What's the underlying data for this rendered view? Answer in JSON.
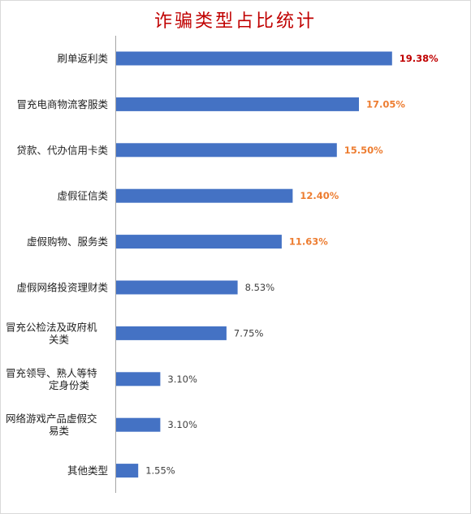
{
  "chart_data": {
    "type": "bar",
    "orientation": "horizontal",
    "title": "诈骗类型占比统计",
    "xlabel": "",
    "ylabel": "",
    "xlim": [
      0,
      21.5
    ],
    "grid": false,
    "legend": "none",
    "categories": [
      "刷单返利类",
      "冒充电商物流客服类",
      "贷款、代办信用卡类",
      "虚假征信类",
      "虚假购物、服务类",
      "虚假网络投资理财类",
      "冒充公检法及政府机关类",
      "冒充领导、熟人等特定身份类",
      "网络游戏产品虚假交易类",
      "其他类型"
    ],
    "category_lines": [
      [
        "刷单返利类"
      ],
      [
        "冒充电商物流客服类"
      ],
      [
        "贷款、代办信用卡类"
      ],
      [
        "虚假征信类"
      ],
      [
        "虚假购物、服务类"
      ],
      [
        "虚假网络投资理财类"
      ],
      [
        "冒充公检法及政府机",
        "关类"
      ],
      [
        "冒充领导、熟人等特",
        "定身份类"
      ],
      [
        "网络游戏产品虚假交",
        "易类"
      ],
      [
        "其他类型"
      ]
    ],
    "values": [
      19.38,
      17.05,
      15.5,
      12.4,
      11.63,
      8.53,
      7.75,
      3.1,
      3.1,
      1.55
    ],
    "value_labels": [
      "19.38%",
      "17.05%",
      "15.50%",
      "12.40%",
      "11.63%",
      "8.53%",
      "7.75%",
      "3.10%",
      "3.10%",
      "1.55%"
    ],
    "label_colors": [
      "#c00000",
      "#ed7d31",
      "#ed7d31",
      "#ed7d31",
      "#ed7d31",
      "#404040",
      "#404040",
      "#404040",
      "#404040",
      "#404040"
    ],
    "label_bold": [
      true,
      true,
      true,
      true,
      true,
      false,
      false,
      false,
      false,
      false
    ],
    "colors": {
      "bar": "#4472c4",
      "axis": "#a6a6a6",
      "title": "#c00000"
    }
  }
}
